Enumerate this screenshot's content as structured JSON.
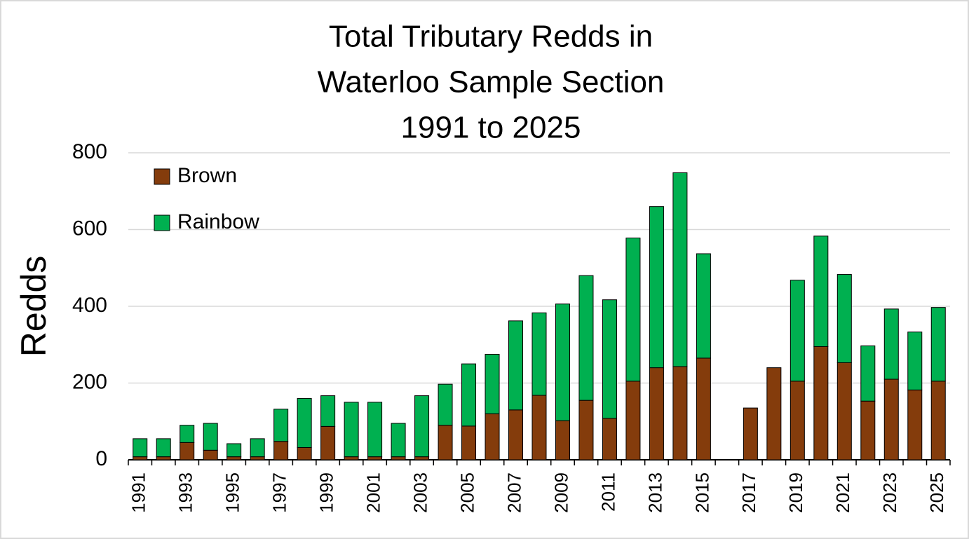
{
  "chart_data": {
    "type": "stacked_bar",
    "title": [
      "Total Tributary Redds in",
      "Waterloo Sample Section",
      "1991 to 2025"
    ],
    "y_label": "Redds",
    "categories": [
      "1991",
      null,
      "1993",
      null,
      "1995",
      null,
      "1997",
      null,
      "1999",
      null,
      "2001",
      null,
      "2003",
      null,
      "2005",
      null,
      "2007",
      null,
      "2009",
      null,
      "2011",
      null,
      "2013",
      null,
      "2015",
      null,
      "2017",
      null,
      "2019",
      null,
      "2021",
      null,
      "2023",
      null,
      "2025"
    ],
    "series": [
      {
        "name": "Brown",
        "color": "#843c0c",
        "values": [
          8,
          8,
          45,
          25,
          8,
          8,
          48,
          32,
          87,
          8,
          8,
          8,
          8,
          90,
          88,
          120,
          130,
          168,
          102,
          155,
          108,
          205,
          240,
          243,
          265,
          null,
          135,
          240,
          205,
          295,
          253,
          153,
          210,
          182,
          205
        ]
      },
      {
        "name": "Rainbow",
        "color": "#00b050",
        "values": [
          47,
          47,
          45,
          70,
          34,
          47,
          84,
          128,
          80,
          142,
          142,
          87,
          159,
          107,
          162,
          155,
          232,
          215,
          304,
          325,
          309,
          373,
          420,
          505,
          272,
          null,
          0,
          0,
          263,
          288,
          230,
          144,
          183,
          151,
          192
        ]
      }
    ],
    "ylim": [
      0,
      800
    ],
    "yticks": [
      0,
      200,
      400,
      600,
      800
    ],
    "grid": true,
    "legend": "top-left"
  }
}
